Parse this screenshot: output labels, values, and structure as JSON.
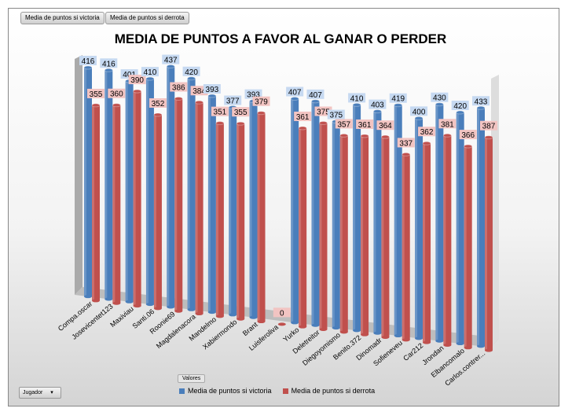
{
  "filters": {
    "btn1": "Media de puntos si victoria",
    "btn2": "Media de puntos si derrota",
    "field_axis": "Jugador",
    "field_values": "Valores",
    "dropdown_icon": "chevron-down-icon"
  },
  "chart_data": {
    "type": "bar",
    "title": "MEDIA DE PUNTOS A FAVOR AL GANAR O PERDER",
    "style": "3d-cylinder",
    "legend_position": "bottom",
    "categories": [
      "Compa.oscar",
      "Josevicentet123",
      "Maxiviau",
      "Santi.06",
      "Roonie69",
      "Magdalenacora",
      "Mandelmo",
      "Xabiermondo",
      "Brant",
      "Luisferoliva",
      "Yurko",
      "Deletreitor",
      "Diegoyomismo",
      "Benito.372",
      "Dinomadr",
      "Sofieneveu",
      "Car212",
      "Jrondan",
      "Elbancomalo",
      "Carlos.contrer..."
    ],
    "series": [
      {
        "name": "Media de puntos si victoria",
        "color": "#4a7ebb",
        "values": [
          416,
          416,
          401,
          410,
          437,
          420,
          393,
          377,
          393,
          null,
          407,
          407,
          375,
          410,
          403,
          419,
          400,
          430,
          420,
          433
        ]
      },
      {
        "name": "Media de puntos si derrota",
        "color": "#c0504d",
        "values": [
          355,
          360,
          390,
          352,
          386,
          384,
          351,
          355,
          379,
          0,
          361,
          375,
          357,
          361,
          364,
          337,
          362,
          381,
          366,
          387
        ]
      }
    ]
  }
}
